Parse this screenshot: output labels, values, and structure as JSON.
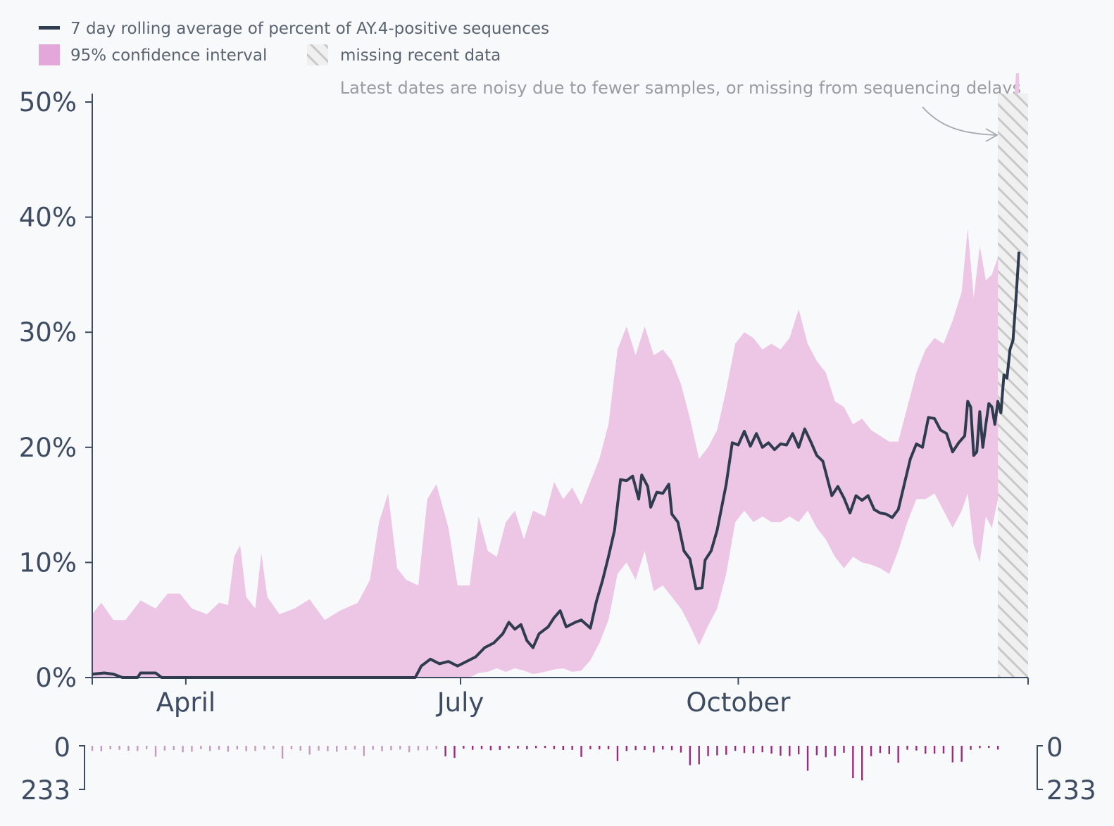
{
  "chart_data": {
    "type": "line",
    "title": "",
    "ylabel": "",
    "xlabel": "",
    "legend": {
      "line_label": "7 day rolling average of percent of AY.4-positive sequences",
      "ci_label": "95% confidence interval",
      "missing_label": "missing recent data",
      "placement": "top-left"
    },
    "annotation": "Latest dates are noisy due to fewer samples, or missing from sequencing delays",
    "y_ticks": [
      "0%",
      "10%",
      "20%",
      "30%",
      "40%",
      "50%"
    ],
    "y_tick_values": [
      0,
      10,
      20,
      30,
      40,
      50
    ],
    "ylim": [
      0,
      50
    ],
    "x_ticks": [
      {
        "label": "April",
        "date": "2021-04-01"
      },
      {
        "label": "July",
        "date": "2021-07-01"
      },
      {
        "label": "October",
        "date": "2021-10-01"
      }
    ],
    "x_range": [
      "2021-03-01",
      "2022-01-05"
    ],
    "missing_start": "2021-12-26",
    "counts_axis": {
      "top": "0",
      "bottom": "233",
      "max": 233
    },
    "colors": {
      "line": "#2f3b4f",
      "ci": "#ecc6e4",
      "legend_ci": "#e3a8d9",
      "axis": "#3e4c63",
      "bars_early": "#c49bbd",
      "bars_late": "#9c2a7e",
      "hatch": "#c8c8c8"
    },
    "series": [
      {
        "name": "7 day rolling average of percent of AY.4-positive sequences",
        "points": [
          [
            "2021-03-01",
            0.3
          ],
          [
            "2021-03-05",
            0.4
          ],
          [
            "2021-03-08",
            0.3
          ],
          [
            "2021-03-11",
            0.0
          ],
          [
            "2021-03-16",
            0.0
          ],
          [
            "2021-03-17",
            0.4
          ],
          [
            "2021-03-22",
            0.4
          ],
          [
            "2021-03-24",
            0.0
          ],
          [
            "2021-06-16",
            0.0
          ],
          [
            "2021-06-18",
            1.0
          ],
          [
            "2021-06-21",
            1.6
          ],
          [
            "2021-06-24",
            1.2
          ],
          [
            "2021-06-27",
            1.4
          ],
          [
            "2021-06-30",
            1.0
          ],
          [
            "2021-07-03",
            1.4
          ],
          [
            "2021-07-06",
            1.8
          ],
          [
            "2021-07-09",
            2.6
          ],
          [
            "2021-07-12",
            3.0
          ],
          [
            "2021-07-15",
            3.8
          ],
          [
            "2021-07-17",
            4.8
          ],
          [
            "2021-07-19",
            4.2
          ],
          [
            "2021-07-21",
            4.6
          ],
          [
            "2021-07-23",
            3.2
          ],
          [
            "2021-07-25",
            2.6
          ],
          [
            "2021-07-27",
            3.8
          ],
          [
            "2021-07-30",
            4.4
          ],
          [
            "2021-08-01",
            5.2
          ],
          [
            "2021-08-03",
            5.8
          ],
          [
            "2021-08-05",
            4.4
          ],
          [
            "2021-08-08",
            4.8
          ],
          [
            "2021-08-10",
            5.0
          ],
          [
            "2021-08-13",
            4.3
          ],
          [
            "2021-08-15",
            6.6
          ],
          [
            "2021-08-17",
            8.4
          ],
          [
            "2021-08-19",
            10.5
          ],
          [
            "2021-08-21",
            12.8
          ],
          [
            "2021-08-23",
            17.2
          ],
          [
            "2021-08-25",
            17.1
          ],
          [
            "2021-08-27",
            17.5
          ],
          [
            "2021-08-29",
            15.5
          ],
          [
            "2021-08-30",
            17.6
          ],
          [
            "2021-09-01",
            16.6
          ],
          [
            "2021-09-02",
            14.8
          ],
          [
            "2021-09-04",
            16.1
          ],
          [
            "2021-09-06",
            16.0
          ],
          [
            "2021-09-08",
            16.8
          ],
          [
            "2021-09-09",
            14.2
          ],
          [
            "2021-09-11",
            13.5
          ],
          [
            "2021-09-13",
            11.0
          ],
          [
            "2021-09-15",
            10.3
          ],
          [
            "2021-09-17",
            7.7
          ],
          [
            "2021-09-19",
            7.8
          ],
          [
            "2021-09-20",
            10.2
          ],
          [
            "2021-09-22",
            11.0
          ],
          [
            "2021-09-24",
            12.8
          ],
          [
            "2021-09-27",
            16.8
          ],
          [
            "2021-09-29",
            20.4
          ],
          [
            "2021-10-01",
            20.2
          ],
          [
            "2021-10-03",
            21.4
          ],
          [
            "2021-10-05",
            20.1
          ],
          [
            "2021-10-07",
            21.2
          ],
          [
            "2021-10-09",
            20.0
          ],
          [
            "2021-10-11",
            20.4
          ],
          [
            "2021-10-13",
            19.8
          ],
          [
            "2021-10-15",
            20.3
          ],
          [
            "2021-10-17",
            20.2
          ],
          [
            "2021-10-19",
            21.2
          ],
          [
            "2021-10-21",
            20.0
          ],
          [
            "2021-10-23",
            21.6
          ],
          [
            "2021-10-25",
            20.5
          ],
          [
            "2021-10-27",
            19.3
          ],
          [
            "2021-10-29",
            18.8
          ],
          [
            "2021-11-01",
            15.8
          ],
          [
            "2021-11-03",
            16.6
          ],
          [
            "2021-11-05",
            15.6
          ],
          [
            "2021-11-07",
            14.3
          ],
          [
            "2021-11-09",
            15.8
          ],
          [
            "2021-11-11",
            15.4
          ],
          [
            "2021-11-13",
            15.8
          ],
          [
            "2021-11-15",
            14.6
          ],
          [
            "2021-11-17",
            14.3
          ],
          [
            "2021-11-19",
            14.2
          ],
          [
            "2021-11-21",
            13.9
          ],
          [
            "2021-11-23",
            14.6
          ],
          [
            "2021-11-25",
            16.8
          ],
          [
            "2021-11-27",
            19.0
          ],
          [
            "2021-11-29",
            20.3
          ],
          [
            "2021-12-01",
            20.0
          ],
          [
            "2021-12-03",
            22.6
          ],
          [
            "2021-12-05",
            22.5
          ],
          [
            "2021-12-07",
            21.5
          ],
          [
            "2021-12-09",
            21.2
          ],
          [
            "2021-12-11",
            19.6
          ],
          [
            "2021-12-13",
            20.4
          ],
          [
            "2021-12-15",
            21.0
          ],
          [
            "2021-12-16",
            24.0
          ],
          [
            "2021-12-17",
            23.5
          ],
          [
            "2021-12-18",
            19.3
          ],
          [
            "2021-12-19",
            19.6
          ],
          [
            "2021-12-20",
            23.1
          ],
          [
            "2021-12-21",
            20.0
          ],
          [
            "2021-12-22",
            22.0
          ],
          [
            "2021-12-23",
            23.8
          ],
          [
            "2021-12-24",
            23.5
          ],
          [
            "2021-12-25",
            22.0
          ],
          [
            "2021-12-26",
            24.0
          ],
          [
            "2021-12-27",
            23.0
          ],
          [
            "2021-12-28",
            26.3
          ],
          [
            "2021-12-29",
            26.0
          ],
          [
            "2021-12-30",
            28.5
          ],
          [
            "2021-12-31",
            29.3
          ],
          [
            "2022-01-01",
            33.0
          ],
          [
            "2022-01-02",
            37.0
          ]
        ]
      }
    ],
    "ci": {
      "name": "95% confidence interval",
      "points": [
        [
          "2021-03-01",
          0.0,
          5.5
        ],
        [
          "2021-03-04",
          0.0,
          6.5
        ],
        [
          "2021-03-08",
          0.0,
          5.0
        ],
        [
          "2021-03-12",
          0.0,
          5.0
        ],
        [
          "2021-03-17",
          0.0,
          6.7
        ],
        [
          "2021-03-22",
          0.0,
          6.0
        ],
        [
          "2021-03-26",
          0.0,
          7.3
        ],
        [
          "2021-03-30",
          0.0,
          7.3
        ],
        [
          "2021-04-03",
          0.0,
          6.0
        ],
        [
          "2021-04-08",
          0.0,
          5.5
        ],
        [
          "2021-04-12",
          0.0,
          6.5
        ],
        [
          "2021-04-15",
          0.0,
          6.3
        ],
        [
          "2021-04-17",
          0.0,
          10.5
        ],
        [
          "2021-04-19",
          0.0,
          11.5
        ],
        [
          "2021-04-21",
          0.0,
          7.0
        ],
        [
          "2021-04-24",
          0.0,
          6.0
        ],
        [
          "2021-04-26",
          0.0,
          10.8
        ],
        [
          "2021-04-28",
          0.0,
          7.0
        ],
        [
          "2021-05-02",
          0.0,
          5.5
        ],
        [
          "2021-05-07",
          0.0,
          6.0
        ],
        [
          "2021-05-12",
          0.0,
          6.8
        ],
        [
          "2021-05-17",
          0.0,
          5.0
        ],
        [
          "2021-05-22",
          0.0,
          5.8
        ],
        [
          "2021-05-28",
          0.0,
          6.5
        ],
        [
          "2021-06-01",
          0.0,
          8.5
        ],
        [
          "2021-06-04",
          0.0,
          13.5
        ],
        [
          "2021-06-07",
          0.0,
          16.0
        ],
        [
          "2021-06-10",
          0.0,
          9.5
        ],
        [
          "2021-06-13",
          0.0,
          8.5
        ],
        [
          "2021-06-17",
          0.0,
          8.0
        ],
        [
          "2021-06-20",
          0.0,
          15.5
        ],
        [
          "2021-06-23",
          0.0,
          16.8
        ],
        [
          "2021-06-27",
          0.0,
          13.0
        ],
        [
          "2021-06-30",
          0.0,
          8.0
        ],
        [
          "2021-07-04",
          0.0,
          8.0
        ],
        [
          "2021-07-07",
          0.4,
          14.0
        ],
        [
          "2021-07-10",
          0.5,
          11.0
        ],
        [
          "2021-07-13",
          0.8,
          10.5
        ],
        [
          "2021-07-16",
          0.5,
          13.5
        ],
        [
          "2021-07-19",
          0.8,
          14.5
        ],
        [
          "2021-07-22",
          0.6,
          12.0
        ],
        [
          "2021-07-25",
          0.3,
          14.5
        ],
        [
          "2021-07-29",
          0.5,
          14.0
        ],
        [
          "2021-08-01",
          0.7,
          17.0
        ],
        [
          "2021-08-04",
          0.8,
          15.5
        ],
        [
          "2021-08-07",
          0.5,
          16.5
        ],
        [
          "2021-08-10",
          0.6,
          15.0
        ],
        [
          "2021-08-13",
          1.5,
          17.0
        ],
        [
          "2021-08-16",
          3.0,
          19.0
        ],
        [
          "2021-08-19",
          5.0,
          22.0
        ],
        [
          "2021-08-22",
          9.0,
          28.5
        ],
        [
          "2021-08-25",
          10.0,
          30.5
        ],
        [
          "2021-08-28",
          8.5,
          28.0
        ],
        [
          "2021-08-31",
          11.0,
          30.5
        ],
        [
          "2021-09-03",
          7.5,
          28.0
        ],
        [
          "2021-09-06",
          8.0,
          28.5
        ],
        [
          "2021-09-09",
          7.0,
          27.5
        ],
        [
          "2021-09-12",
          6.0,
          25.5
        ],
        [
          "2021-09-15",
          4.5,
          22.5
        ],
        [
          "2021-09-18",
          2.8,
          19.0
        ],
        [
          "2021-09-21",
          4.5,
          20.0
        ],
        [
          "2021-09-24",
          6.0,
          21.5
        ],
        [
          "2021-09-27",
          9.0,
          25.0
        ],
        [
          "2021-09-30",
          13.5,
          29.0
        ],
        [
          "2021-10-03",
          14.5,
          30.0
        ],
        [
          "2021-10-06",
          13.5,
          29.5
        ],
        [
          "2021-10-09",
          14.0,
          28.5
        ],
        [
          "2021-10-12",
          13.5,
          29.0
        ],
        [
          "2021-10-15",
          13.5,
          28.5
        ],
        [
          "2021-10-18",
          14.0,
          29.5
        ],
        [
          "2021-10-21",
          13.5,
          32.0
        ],
        [
          "2021-10-24",
          14.5,
          29.0
        ],
        [
          "2021-10-27",
          13.0,
          27.5
        ],
        [
          "2021-10-30",
          12.0,
          26.5
        ],
        [
          "2021-11-02",
          10.5,
          24.0
        ],
        [
          "2021-11-05",
          9.5,
          23.5
        ],
        [
          "2021-11-08",
          10.5,
          22.0
        ],
        [
          "2021-11-11",
          10.0,
          22.5
        ],
        [
          "2021-11-14",
          9.8,
          21.5
        ],
        [
          "2021-11-17",
          9.5,
          21.0
        ],
        [
          "2021-11-20",
          9.0,
          20.5
        ],
        [
          "2021-11-23",
          11.0,
          20.5
        ],
        [
          "2021-11-26",
          13.5,
          23.5
        ],
        [
          "2021-11-29",
          15.5,
          26.5
        ],
        [
          "2021-12-02",
          15.5,
          28.5
        ],
        [
          "2021-12-05",
          16.0,
          29.5
        ],
        [
          "2021-12-08",
          14.5,
          29.0
        ],
        [
          "2021-12-11",
          13.0,
          31.0
        ],
        [
          "2021-12-14",
          14.5,
          33.5
        ],
        [
          "2021-12-16",
          16.0,
          39.0
        ],
        [
          "2021-12-18",
          11.5,
          33.0
        ],
        [
          "2021-12-20",
          10.0,
          37.5
        ],
        [
          "2021-12-22",
          14.0,
          34.5
        ],
        [
          "2021-12-24",
          13.0,
          35.0
        ],
        [
          "2021-12-26",
          15.5,
          36.5
        ],
        [
          "2021-12-28",
          15.5,
          40.5
        ],
        [
          "2021-12-30",
          17.0,
          45.0
        ],
        [
          "2022-01-01",
          17.5,
          52.5
        ],
        [
          "2022-01-02",
          8.0,
          52.5
        ]
      ]
    },
    "counts": [
      {
        "from": "2021-03-01",
        "to": "2021-06-25",
        "level": 0.17,
        "peak": 0.3
      },
      {
        "from": "2021-06-25",
        "to": "2021-08-20",
        "level": 0.12,
        "peak": 0.35
      },
      {
        "from": "2021-08-20",
        "to": "2021-09-20",
        "level": 0.18,
        "peak": 0.45
      },
      {
        "from": "2021-09-20",
        "to": "2021-10-20",
        "level": 0.28,
        "peak": 0.62
      },
      {
        "from": "2021-10-20",
        "to": "2021-11-20",
        "level": 0.35,
        "peak": 0.95
      },
      {
        "from": "2021-11-20",
        "to": "2021-12-20",
        "level": 0.22,
        "peak": 0.55
      },
      {
        "from": "2021-12-20",
        "to": "2022-01-02",
        "level": 0.12,
        "peak": 0.45
      }
    ]
  }
}
